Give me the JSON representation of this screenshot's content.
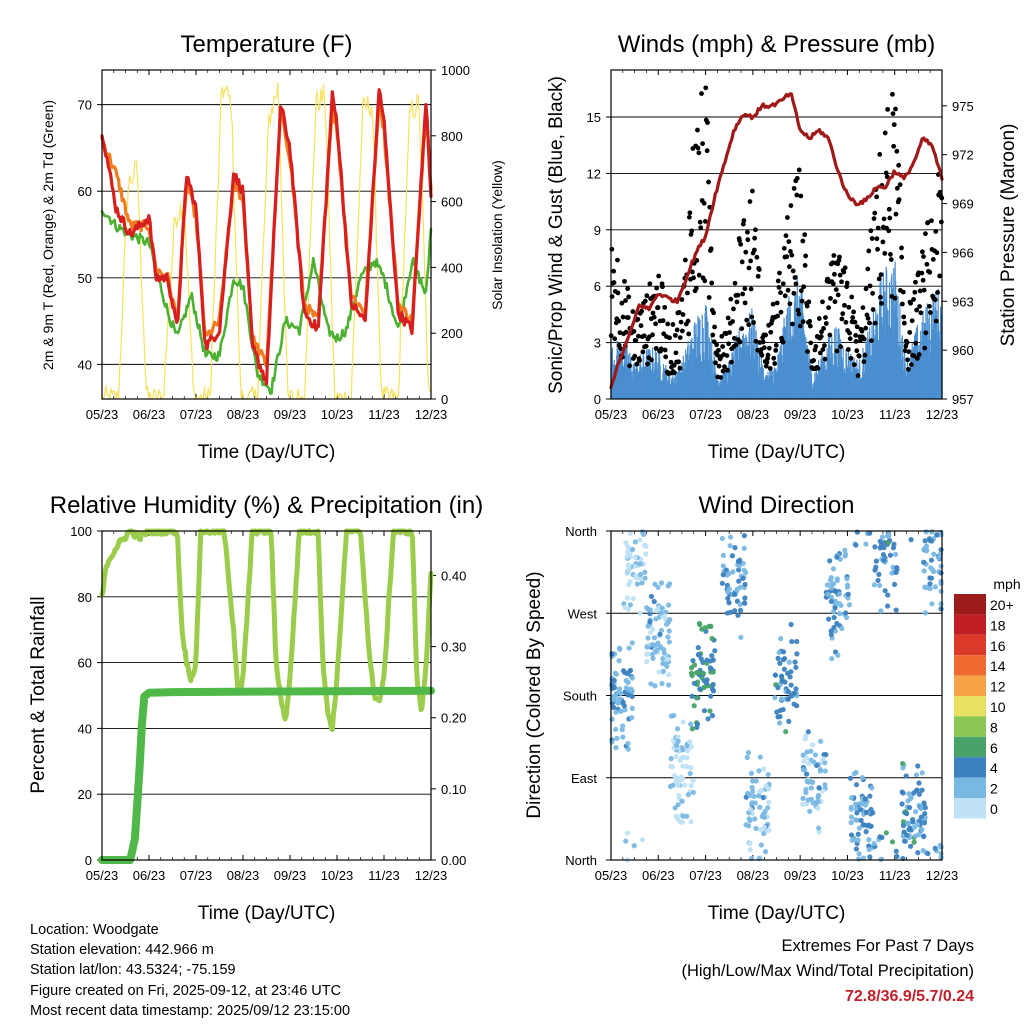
{
  "station": {
    "location_line": "Location: Woodgate",
    "elevation_line": "Station elevation: 442.966 m",
    "latlon_line": "Station lat/lon: 43.5324; -75.159",
    "created_line": "Figure created on Fri, 2025-09-12, at 23:46 UTC",
    "recent_line": "Most recent data timestamp: 2025/09/12 23:15:00"
  },
  "extremes": {
    "title": "Extremes For Past 7 Days",
    "subtitle": "(High/Low/Max Wind/Total Precipitation)",
    "values": "72.8/36.9/5.7/0.24"
  },
  "colors": {
    "temp": "#d62020",
    "temp9": "#f07c20",
    "dew": "#4cb030",
    "solar": "#f6e160",
    "wind": "#4b8fd0",
    "gust": "#000000",
    "pressure": "#a01818",
    "rh": "#9ccc4c",
    "precip": "#50b848"
  },
  "chart_data": [
    {
      "type": "line",
      "title": "Temperature (F)",
      "xlabel": "Time (Day/UTC)",
      "ylabel": "2m & 9m T (Red, Orange) & 2m Td (Green)",
      "ylabel_right": "Solar Insolation (Yellow)",
      "x_ticks": [
        "05/23",
        "06/23",
        "07/23",
        "08/23",
        "09/23",
        "10/23",
        "11/23",
        "12/23"
      ],
      "x_range": [
        0,
        7
      ],
      "ylim": [
        36,
        74
      ],
      "y_ticks": [
        40,
        50,
        60,
        70
      ],
      "y2lim": [
        0,
        1000
      ],
      "y2_ticks": [
        0,
        200,
        400,
        600,
        800,
        1000
      ],
      "grid": true,
      "series": [
        {
          "name": "2m T",
          "x": [
            0,
            0.3,
            0.6,
            1.0,
            1.15,
            1.4,
            1.6,
            1.8,
            2.0,
            2.2,
            2.5,
            2.8,
            3.0,
            3.2,
            3.5,
            3.8,
            4.0,
            4.3,
            4.6,
            4.9,
            5.0,
            5.3,
            5.6,
            5.9,
            6.0,
            6.3,
            6.6,
            6.9,
            7.0
          ],
          "values": [
            67,
            58,
            55,
            57,
            50,
            50,
            44,
            62,
            58,
            42,
            44,
            62,
            60,
            42,
            38,
            70,
            65,
            46,
            44,
            71,
            68,
            47,
            45,
            72,
            68,
            46,
            44,
            71,
            59
          ]
        },
        {
          "name": "9m T",
          "x": [
            0,
            0.3,
            0.6,
            1.0,
            1.15,
            1.4,
            1.6,
            1.8,
            2.0,
            2.2,
            2.5,
            2.8,
            3.0,
            3.2,
            3.5,
            3.8,
            4.0,
            4.3,
            4.6,
            4.9,
            5.0,
            5.3,
            5.6,
            5.9,
            6.0,
            6.3,
            6.6,
            6.9,
            7.0
          ],
          "values": [
            66,
            62,
            56,
            56,
            51,
            50,
            45,
            61,
            57,
            43,
            45,
            61,
            59,
            43,
            40,
            69,
            64,
            47,
            45,
            70,
            67,
            48,
            46,
            71,
            67,
            47,
            45,
            70,
            60
          ]
        },
        {
          "name": "2m Td",
          "x": [
            0,
            0.3,
            0.6,
            1.0,
            1.2,
            1.4,
            1.6,
            1.9,
            2.2,
            2.5,
            2.8,
            3.0,
            3.3,
            3.6,
            3.9,
            4.2,
            4.5,
            4.8,
            5.0,
            5.2,
            5.5,
            5.8,
            6.0,
            6.3,
            6.6,
            6.9,
            7.0
          ],
          "values": [
            58,
            56,
            55,
            54,
            50,
            46,
            43,
            48,
            41,
            41,
            50,
            49,
            39,
            37,
            45,
            44,
            52,
            44,
            43,
            44,
            50,
            52,
            50,
            44,
            52,
            48,
            56
          ]
        },
        {
          "name": "Solar",
          "x": [
            0,
            0.35,
            0.55,
            0.75,
            0.95,
            1.3,
            1.55,
            1.75,
            1.95,
            2.3,
            2.55,
            2.75,
            2.95,
            3.3,
            3.55,
            3.75,
            3.95,
            4.3,
            4.55,
            4.75,
            4.95,
            5.3,
            5.55,
            5.75,
            5.95,
            6.3,
            6.55,
            6.75,
            6.95,
            7.0
          ],
          "values": [
            0,
            0,
            650,
            700,
            0,
            0,
            550,
            600,
            0,
            0,
            950,
            900,
            0,
            0,
            850,
            950,
            0,
            0,
            900,
            920,
            0,
            0,
            880,
            900,
            0,
            0,
            870,
            900,
            0,
            0
          ]
        }
      ]
    },
    {
      "type": "line",
      "title": "Winds (mph) & Pressure (mb)",
      "xlabel": "Time (Day/UTC)",
      "ylabel": "Sonic/Prop Wind & Gust (Blue, Black)",
      "ylabel_right": "Station Pressure (Maroon)",
      "x_ticks": [
        "05/23",
        "06/23",
        "07/23",
        "08/23",
        "09/23",
        "10/23",
        "11/23",
        "12/23"
      ],
      "x_range": [
        0,
        7
      ],
      "ylim": [
        0,
        17.5
      ],
      "y_ticks": [
        0,
        3,
        6,
        9,
        12,
        15
      ],
      "y2lim": [
        957,
        977.2
      ],
      "y2_ticks": [
        957,
        960,
        963,
        966,
        969,
        972,
        975
      ],
      "grid": true,
      "series": [
        {
          "name": "Pressure",
          "x": [
            0,
            0.2,
            0.4,
            0.6,
            0.8,
            1.0,
            1.2,
            1.4,
            1.6,
            1.8,
            2.0,
            2.2,
            2.4,
            2.6,
            2.8,
            3.0,
            3.2,
            3.4,
            3.6,
            3.8,
            4.0,
            4.2,
            4.4,
            4.6,
            4.8,
            5.0,
            5.2,
            5.4,
            5.6,
            5.8,
            6.0,
            6.2,
            6.4,
            6.6,
            6.8,
            7.0
          ],
          "values": [
            957.8,
            959.5,
            961,
            962.8,
            962.5,
            963.5,
            963.2,
            963,
            964.5,
            966,
            967,
            969.5,
            971.5,
            973.5,
            974.5,
            974.3,
            975,
            975,
            975.3,
            975.8,
            973.5,
            973,
            973.5,
            973,
            971,
            969.5,
            969,
            969.2,
            970,
            970,
            971,
            970.5,
            971.5,
            973,
            972.5,
            970.5
          ]
        },
        {
          "name": "Gust",
          "x": [
            0,
            0.25,
            0.5,
            0.75,
            1.0,
            1.25,
            1.5,
            1.75,
            2.0,
            2.25,
            2.5,
            2.75,
            3.0,
            3.25,
            3.5,
            3.75,
            4.0,
            4.25,
            4.5,
            4.75,
            5.0,
            5.25,
            5.5,
            5.75,
            6.0,
            6.25,
            6.5,
            6.75,
            7.0
          ],
          "values": [
            8.7,
            6,
            4,
            5,
            6.5,
            3,
            5,
            13,
            15,
            3,
            4,
            9,
            10,
            3,
            5,
            9,
            11,
            3,
            5,
            7,
            6,
            3,
            8,
            13,
            15,
            4,
            6,
            9,
            11
          ]
        },
        {
          "name": "Wind",
          "x": [
            0,
            0.25,
            0.5,
            0.75,
            1.0,
            1.25,
            1.5,
            1.75,
            2.0,
            2.25,
            2.5,
            2.75,
            3.0,
            3.25,
            3.5,
            3.75,
            4.0,
            4.25,
            4.5,
            4.75,
            5.0,
            5.25,
            5.5,
            5.75,
            6.0,
            6.25,
            6.5,
            6.75,
            7.0
          ],
          "values": [
            2,
            2.5,
            1.5,
            2,
            2,
            1,
            1.5,
            3,
            4,
            1,
            1.5,
            3,
            3.5,
            1,
            1.5,
            4,
            5,
            1,
            2,
            3,
            2,
            1.5,
            3,
            5,
            5.5,
            1.5,
            3,
            4,
            4.5
          ]
        }
      ]
    },
    {
      "type": "line",
      "title": "Relative Humidity (%) & Precipitation (in)",
      "xlabel": "Time (Day/UTC)",
      "ylabel": "Percent & Total Rainfall",
      "x_ticks": [
        "05/23",
        "06/23",
        "07/23",
        "08/23",
        "09/23",
        "10/23",
        "11/23",
        "12/23"
      ],
      "x_range": [
        0,
        7
      ],
      "ylim": [
        0,
        100
      ],
      "y_ticks": [
        0,
        20,
        40,
        60,
        80,
        100
      ],
      "y2lim": [
        0,
        0.4625
      ],
      "y2_ticks": [
        0.0,
        0.1,
        0.2,
        0.3,
        0.4
      ],
      "y2_tick_labels": [
        "0.00",
        "0.10",
        "0.20",
        "0.30",
        "0.40"
      ],
      "grid": true,
      "series": [
        {
          "name": "RH",
          "x": [
            0,
            0.1,
            0.3,
            0.6,
            0.8,
            1.0,
            1.3,
            1.6,
            1.7,
            1.8,
            1.9,
            2.0,
            2.1,
            2.3,
            2.6,
            2.8,
            2.9,
            3.0,
            3.2,
            3.6,
            3.7,
            3.8,
            3.9,
            4.0,
            4.2,
            4.6,
            4.7,
            4.8,
            4.9,
            5.0,
            5.2,
            5.5,
            5.7,
            5.8,
            5.9,
            6.0,
            6.2,
            6.6,
            6.7,
            6.8,
            6.9,
            7.0
          ],
          "values": [
            80,
            90,
            95,
            100,
            98,
            100,
            100,
            100,
            70,
            60,
            55,
            60,
            100,
            100,
            100,
            70,
            50,
            55,
            100,
            100,
            60,
            50,
            42,
            55,
            100,
            100,
            60,
            45,
            40,
            55,
            100,
            100,
            60,
            50,
            48,
            55,
            100,
            100,
            55,
            45,
            60,
            88
          ]
        },
        {
          "name": "Precip",
          "x": [
            0,
            0.4,
            0.6,
            0.7,
            0.75,
            0.8,
            0.85,
            0.9,
            1.0,
            1.5,
            7.0
          ],
          "values": [
            0,
            0,
            0,
            0.03,
            0.08,
            0.13,
            0.19,
            0.23,
            0.235,
            0.236,
            0.238
          ]
        }
      ]
    },
    {
      "type": "scatter",
      "title": "Wind Direction",
      "xlabel": "Time (Day/UTC)",
      "ylabel": "Direction (Colored By Speed)",
      "x_ticks": [
        "05/23",
        "06/23",
        "07/23",
        "08/23",
        "09/23",
        "10/23",
        "11/23",
        "12/23"
      ],
      "x_range": [
        0,
        7
      ],
      "y_tick_labels": [
        "North",
        "East",
        "South",
        "West",
        "North"
      ],
      "ylim": [
        0,
        360
      ],
      "colorbar": {
        "label": "mph",
        "labels": [
          "20+",
          "18",
          "16",
          "14",
          "12",
          "10",
          "8",
          "6",
          "4",
          "2",
          "0"
        ],
        "colors": [
          "#9c1c1c",
          "#bf1f22",
          "#dc3a28",
          "#ee6a30",
          "#f6a347",
          "#e8e060",
          "#8cc655",
          "#48a368",
          "#3c82c0",
          "#7ab8e4",
          "#bfe2f6"
        ]
      },
      "clusters": [
        {
          "x": 0.2,
          "dir": 180,
          "speed": 3
        },
        {
          "x": 0.5,
          "dir": 330,
          "speed": 1
        },
        {
          "x": 1.0,
          "dir": 250,
          "speed": 2
        },
        {
          "x": 1.5,
          "dir": 100,
          "speed": 1
        },
        {
          "x": 1.95,
          "dir": 200,
          "speed": 5
        },
        {
          "x": 2.6,
          "dir": 300,
          "speed": 3
        },
        {
          "x": 3.1,
          "dir": 60,
          "speed": 2
        },
        {
          "x": 3.7,
          "dir": 200,
          "speed": 4
        },
        {
          "x": 4.3,
          "dir": 90,
          "speed": 2
        },
        {
          "x": 4.8,
          "dir": 280,
          "speed": 3
        },
        {
          "x": 5.3,
          "dir": 40,
          "speed": 3
        },
        {
          "x": 5.8,
          "dir": 330,
          "speed": 4
        },
        {
          "x": 6.4,
          "dir": 50,
          "speed": 4
        },
        {
          "x": 6.85,
          "dir": 330,
          "speed": 3
        }
      ]
    }
  ]
}
